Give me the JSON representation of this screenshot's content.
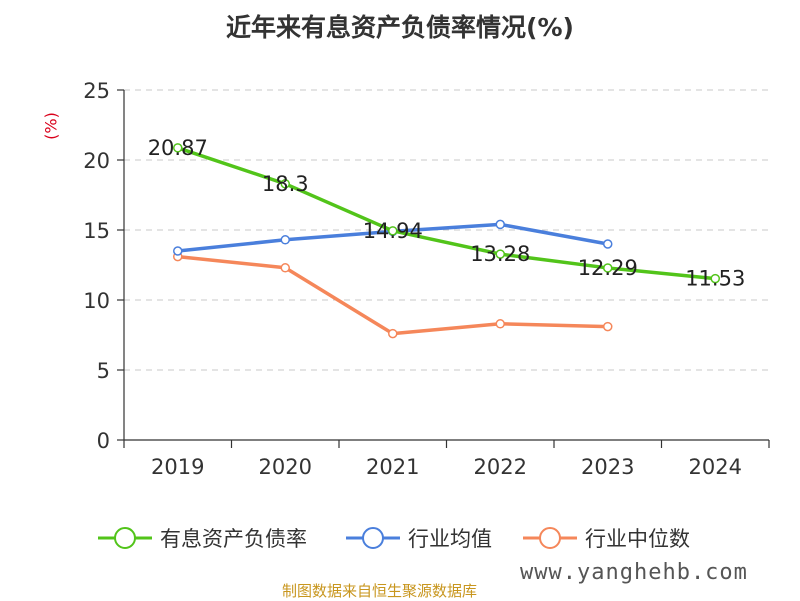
{
  "title": "近年来有息资产负债率情况(%)",
  "source": "制图数据来自恒生聚源数据库",
  "watermark": "www.yanghehb.com",
  "chart_data": {
    "type": "line",
    "title": "近年来有息资产负债率情况(%)",
    "ylabel": "(%)",
    "ylim": [
      0,
      25
    ],
    "yticks": [
      0,
      5,
      10,
      15,
      20,
      25
    ],
    "grid": true,
    "legend_position": "bottom",
    "categories": [
      "2019",
      "2020",
      "2021",
      "2022",
      "2023",
      "2024"
    ],
    "series": [
      {
        "name": "有息资产负债率",
        "color": "#52c41a",
        "values": [
          20.87,
          18.3,
          14.94,
          13.28,
          12.29,
          11.53
        ],
        "labels": [
          "20.87",
          "18.3",
          "14.94",
          "13.28",
          "12.29",
          "11.53"
        ]
      },
      {
        "name": "行业均值",
        "color": "#4a7fdc",
        "values": [
          13.5,
          14.3,
          14.9,
          15.4,
          14.0,
          null
        ]
      },
      {
        "name": "行业中位数",
        "color": "#f5875a",
        "values": [
          13.1,
          12.3,
          7.6,
          8.3,
          8.1,
          null
        ]
      }
    ]
  }
}
